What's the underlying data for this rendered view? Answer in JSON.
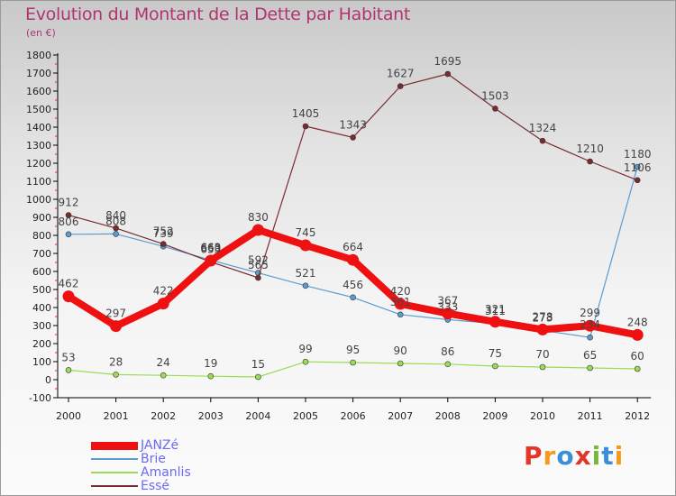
{
  "header": {
    "title": "Evolution du Montant de la Dette par Habitant",
    "subtitle": "(en €)"
  },
  "logo": {
    "text": "Proxiti",
    "colors": [
      "#e0372a",
      "#f59a1c",
      "#3a8fd8",
      "#e0372a",
      "#7ab83b",
      "#3a8fd8",
      "#f59a1c"
    ]
  },
  "chart_data": {
    "type": "line",
    "categories": [
      "2000",
      "2001",
      "2002",
      "2003",
      "2004",
      "2005",
      "2006",
      "2007",
      "2008",
      "2009",
      "2010",
      "2011",
      "2012"
    ],
    "ylim": [
      -100,
      1800
    ],
    "yticks": [
      -100,
      0,
      100,
      200,
      300,
      400,
      500,
      600,
      700,
      800,
      900,
      1000,
      1100,
      1200,
      1300,
      1400,
      1500,
      1600,
      1700,
      1800
    ],
    "grid": false,
    "legend_position": "bottom-left",
    "series": [
      {
        "name": "JANZé",
        "color": "#ef1111",
        "values": [
          462,
          297,
          422,
          660,
          830,
          745,
          664,
          420,
          367,
          321,
          278,
          299,
          248
        ]
      },
      {
        "name": "Brie",
        "color": "#5b9bd0",
        "values": [
          806,
          808,
          739,
          663,
          592,
          521,
          456,
          361,
          333,
          311,
          273,
          234,
          1180
        ]
      },
      {
        "name": "Amanlis",
        "color": "#99dd55",
        "values": [
          53,
          28,
          24,
          19,
          15,
          99,
          95,
          90,
          86,
          75,
          70,
          65,
          60
        ]
      },
      {
        "name": "Essé",
        "color": "#7a2b30",
        "values": [
          912,
          840,
          752,
          653,
          565,
          1405,
          1343,
          1627,
          1695,
          1503,
          1324,
          1210,
          1106
        ]
      }
    ]
  }
}
